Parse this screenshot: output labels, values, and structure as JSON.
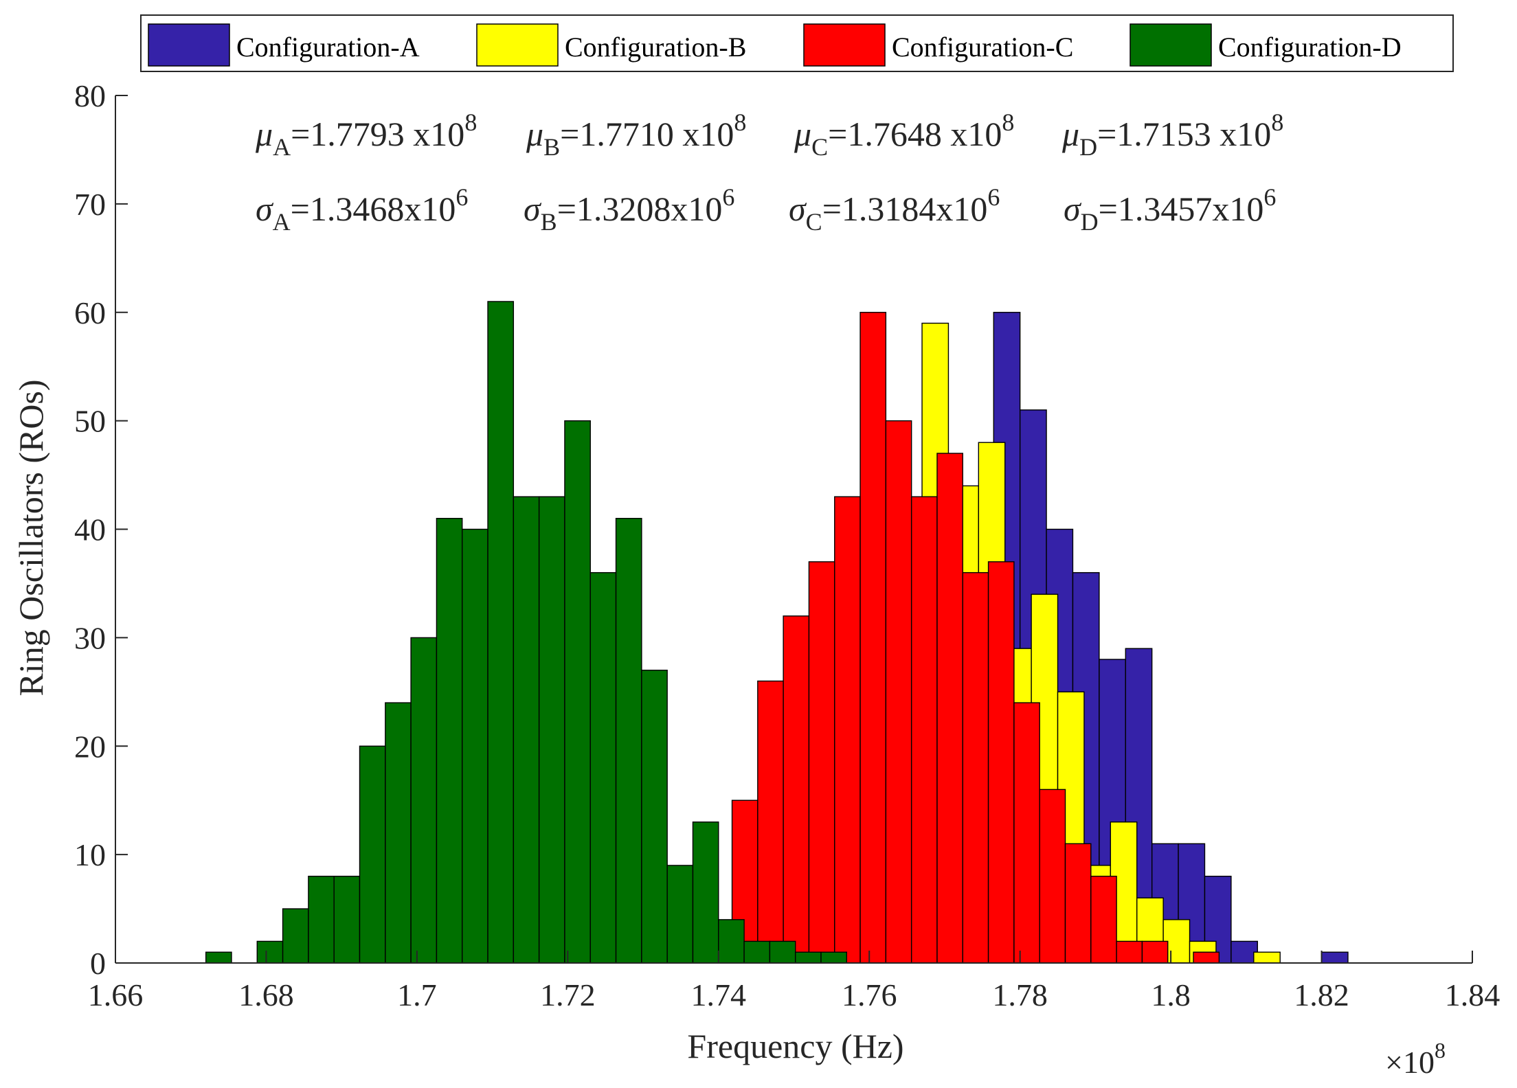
{
  "chart_data": {
    "type": "bar",
    "subtype": "histogram",
    "xlabel": "Frequency (Hz)",
    "ylabel": "Ring Oscillators (ROs)",
    "x_exponent_label": "×10",
    "x_exponent_power": "8",
    "xlim": [
      1.66,
      1.84
    ],
    "ylim": [
      0,
      80
    ],
    "xticks": [
      1.66,
      1.68,
      1.7,
      1.72,
      1.74,
      1.76,
      1.78,
      1.8,
      1.82,
      1.84
    ],
    "xtick_labels": [
      "1.66",
      "1.68",
      "1.7",
      "1.72",
      "1.74",
      "1.76",
      "1.78",
      "1.8",
      "1.82",
      "1.84"
    ],
    "yticks": [
      0,
      10,
      20,
      30,
      40,
      50,
      60,
      70,
      80
    ],
    "ytick_labels": [
      "0",
      "10",
      "20",
      "30",
      "40",
      "50",
      "60",
      "70",
      "80"
    ],
    "legend_position": "top",
    "grid": false,
    "annotations": {
      "mu": [
        {
          "sym": "μ",
          "sub": "A",
          "text": "=1.7793 x10",
          "sup": "8"
        },
        {
          "sym": "μ",
          "sub": "B",
          "text": "=1.7710 x10",
          "sup": "8"
        },
        {
          "sym": "μ",
          "sub": "C",
          "text": "=1.7648 x10",
          "sup": "8"
        },
        {
          "sym": "μ",
          "sub": "D",
          "text": "=1.7153 x10",
          "sup": "8"
        }
      ],
      "sigma": [
        {
          "sym": "σ",
          "sub": "A",
          "text": "=1.3468x10",
          "sup": "6"
        },
        {
          "sym": "σ",
          "sub": "B",
          "text": "=1.3208x10",
          "sup": "6"
        },
        {
          "sym": "σ",
          "sub": "C",
          "text": "=1.3184x10",
          "sup": "6"
        },
        {
          "sym": "σ",
          "sub": "D",
          "text": "=1.3457x10",
          "sup": "6"
        }
      ]
    },
    "series": [
      {
        "name": "Configuration-A",
        "color": "#3522a8",
        "bins": [
          [
            1.7765,
            1.78,
            60
          ],
          [
            1.78,
            1.7835,
            51
          ],
          [
            1.7835,
            1.787,
            40
          ],
          [
            1.787,
            1.7905,
            36
          ],
          [
            1.7905,
            1.794,
            28
          ],
          [
            1.794,
            1.7975,
            29
          ],
          [
            1.7975,
            1.801,
            11
          ],
          [
            1.801,
            1.8045,
            11
          ],
          [
            1.8045,
            1.808,
            8
          ],
          [
            1.808,
            1.8115,
            2
          ],
          [
            1.82,
            1.8235,
            1
          ]
        ]
      },
      {
        "name": "Configuration-B",
        "color": "#ffff00",
        "bins": [
          [
            1.767,
            1.7705,
            59
          ],
          [
            1.771,
            1.7745,
            44
          ],
          [
            1.7745,
            1.778,
            48
          ],
          [
            1.778,
            1.7815,
            29
          ],
          [
            1.7815,
            1.785,
            34
          ],
          [
            1.785,
            1.7885,
            25
          ],
          [
            1.7885,
            1.792,
            9
          ],
          [
            1.792,
            1.7955,
            13
          ],
          [
            1.7955,
            1.799,
            6
          ],
          [
            1.799,
            1.8025,
            4
          ],
          [
            1.8025,
            1.806,
            2
          ],
          [
            1.811,
            1.8145,
            1
          ]
        ]
      },
      {
        "name": "Configuration-C",
        "color": "#ff0000",
        "bins": [
          [
            1.7418,
            1.7452,
            15
          ],
          [
            1.7452,
            1.7486,
            26
          ],
          [
            1.7486,
            1.752,
            32
          ],
          [
            1.752,
            1.7554,
            37
          ],
          [
            1.7554,
            1.7588,
            43
          ],
          [
            1.7588,
            1.7622,
            60
          ],
          [
            1.7622,
            1.7656,
            50
          ],
          [
            1.7656,
            1.769,
            43
          ],
          [
            1.769,
            1.7724,
            47
          ],
          [
            1.7724,
            1.7758,
            36
          ],
          [
            1.7758,
            1.7792,
            37
          ],
          [
            1.7792,
            1.7826,
            24
          ],
          [
            1.7826,
            1.786,
            16
          ],
          [
            1.786,
            1.7894,
            11
          ],
          [
            1.7894,
            1.7928,
            8
          ],
          [
            1.7928,
            1.7962,
            2
          ],
          [
            1.7962,
            1.7996,
            2
          ],
          [
            1.803,
            1.8064,
            1
          ]
        ]
      },
      {
        "name": "Configuration-D",
        "color": "#007000",
        "bins": [
          [
            1.672,
            1.6754,
            1
          ],
          [
            1.6788,
            1.6822,
            2
          ],
          [
            1.6822,
            1.6856,
            5
          ],
          [
            1.6856,
            1.689,
            8
          ],
          [
            1.689,
            1.6924,
            8
          ],
          [
            1.6924,
            1.6958,
            20
          ],
          [
            1.6958,
            1.6992,
            24
          ],
          [
            1.6992,
            1.7026,
            30
          ],
          [
            1.7026,
            1.706,
            41
          ],
          [
            1.706,
            1.7094,
            40
          ],
          [
            1.7094,
            1.7128,
            61
          ],
          [
            1.7128,
            1.7162,
            43
          ],
          [
            1.7162,
            1.7196,
            43
          ],
          [
            1.7196,
            1.723,
            50
          ],
          [
            1.723,
            1.7264,
            36
          ],
          [
            1.7264,
            1.7298,
            41
          ],
          [
            1.7298,
            1.7332,
            27
          ],
          [
            1.7332,
            1.7366,
            9
          ],
          [
            1.7366,
            1.74,
            13
          ],
          [
            1.74,
            1.7434,
            4
          ],
          [
            1.7434,
            1.7468,
            2
          ],
          [
            1.7468,
            1.7502,
            2
          ],
          [
            1.7502,
            1.7536,
            1
          ],
          [
            1.7536,
            1.757,
            1
          ]
        ]
      }
    ]
  }
}
